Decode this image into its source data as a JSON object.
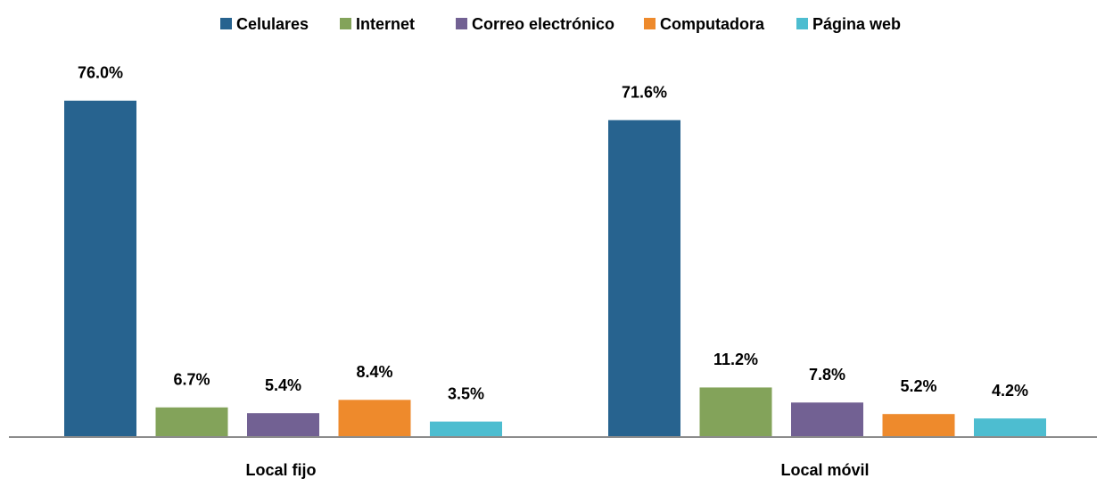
{
  "chart_data": {
    "type": "bar",
    "categories": [
      "Local fijo",
      "Local móvil"
    ],
    "series": [
      {
        "name": "Celulares",
        "color": "#27638f",
        "values": [
          76.0,
          71.6
        ],
        "value_labels": [
          "76.0%",
          "71.6%"
        ]
      },
      {
        "name": "Internet",
        "color": "#83a35a",
        "values": [
          6.7,
          11.2
        ],
        "value_labels": [
          "6.7%",
          "11.2%"
        ]
      },
      {
        "name": "Correo electrónico",
        "color": "#726193",
        "values": [
          5.4,
          7.8
        ],
        "value_labels": [
          "5.4%",
          "7.8%"
        ]
      },
      {
        "name": "Computadora",
        "color": "#ee8a2c",
        "values": [
          8.4,
          5.2
        ],
        "value_labels": [
          "8.4%",
          "5.2%"
        ]
      },
      {
        "name": "Página web",
        "color": "#4dbdd0",
        "values": [
          3.5,
          4.2
        ],
        "value_labels": [
          "3.5%",
          "4.2%"
        ]
      }
    ],
    "ylim": [
      0,
      80
    ],
    "legend": "top"
  }
}
